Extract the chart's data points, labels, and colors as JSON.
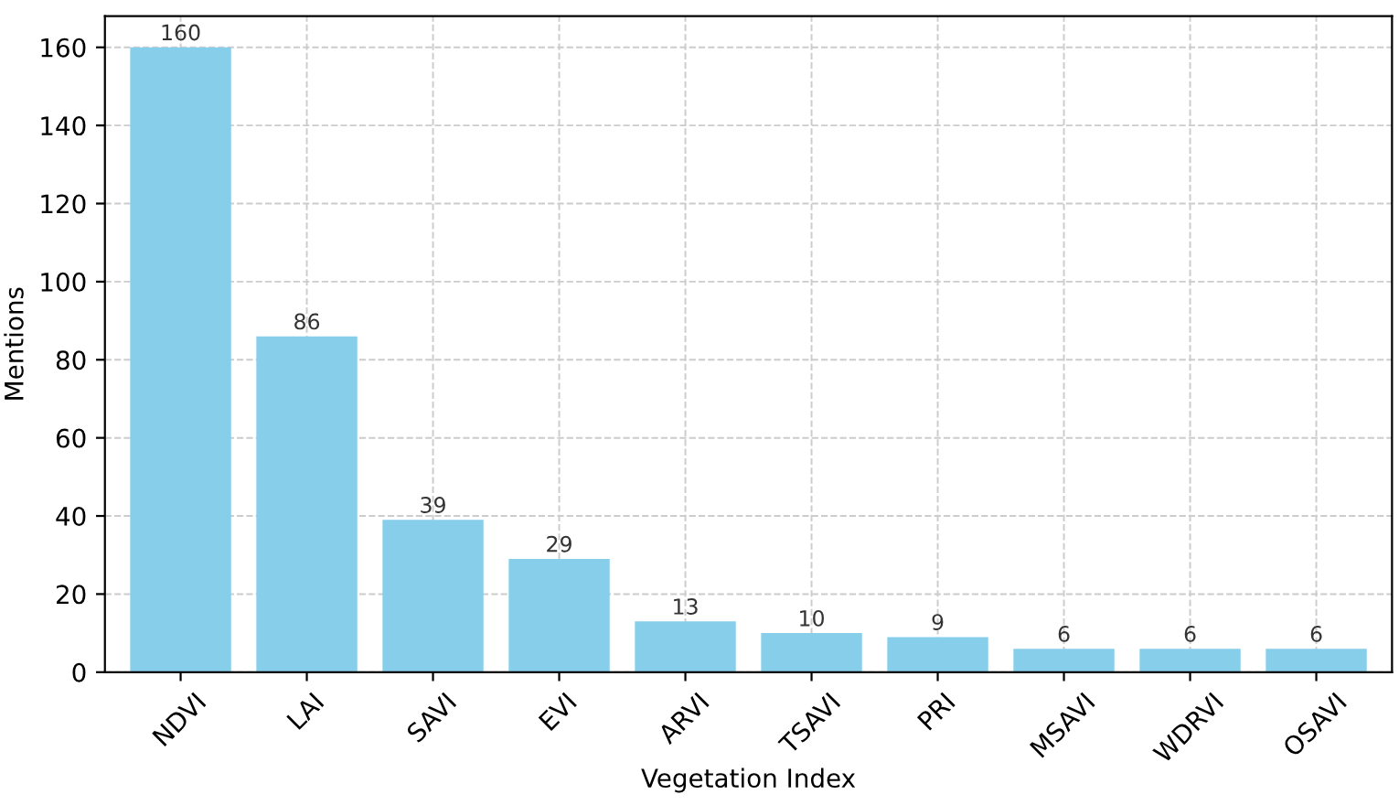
{
  "chart_data": {
    "type": "bar",
    "xlabel": "Vegetation Index",
    "ylabel": "Mentions",
    "categories": [
      "NDVI",
      "LAI",
      "SAVI",
      "EVI",
      "ARVI",
      "TSAVI",
      "PRI",
      "MSAVI",
      "WDRVI",
      "OSAVI"
    ],
    "values": [
      160,
      86,
      39,
      29,
      13,
      10,
      9,
      6,
      6,
      6
    ],
    "color": "#87ceeb",
    "ylim": [
      0,
      168
    ],
    "yticks": [
      0,
      20,
      40,
      60,
      80,
      100,
      120,
      140,
      160
    ],
    "grid": true,
    "data_labels": true
  }
}
